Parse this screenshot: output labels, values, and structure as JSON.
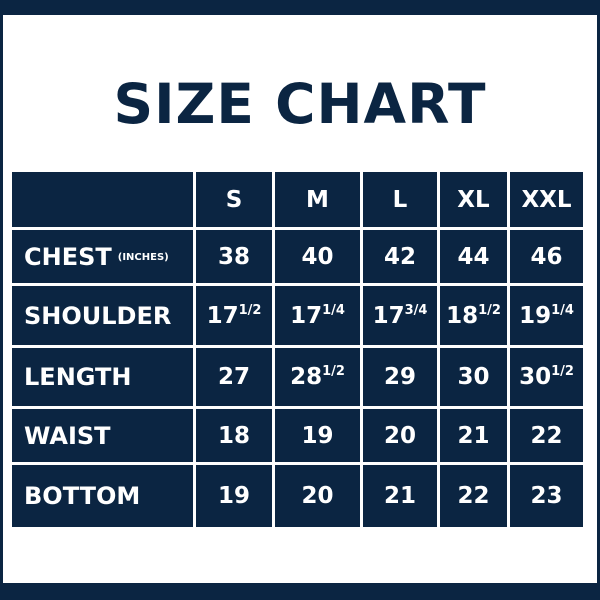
{
  "title": "SIZE CHART",
  "colors": {
    "navy": "#0b2542",
    "background": "#ffffff",
    "text": "#ffffff"
  },
  "table": {
    "columns": [
      "S",
      "M",
      "L",
      "XL",
      "XXL"
    ],
    "rows": [
      {
        "label": "CHEST",
        "note": "(INCHES)",
        "values": [
          {
            "w": "38",
            "f": ""
          },
          {
            "w": "40",
            "f": ""
          },
          {
            "w": "42",
            "f": ""
          },
          {
            "w": "44",
            "f": ""
          },
          {
            "w": "46",
            "f": ""
          }
        ]
      },
      {
        "label": "SHOULDER",
        "note": "",
        "values": [
          {
            "w": "17",
            "f": "1/2"
          },
          {
            "w": "17",
            "f": "1/4"
          },
          {
            "w": "17",
            "f": "3/4"
          },
          {
            "w": "18",
            "f": "1/2"
          },
          {
            "w": "19",
            "f": "1/4"
          }
        ]
      },
      {
        "label": "LENGTH",
        "note": "",
        "values": [
          {
            "w": "27",
            "f": ""
          },
          {
            "w": "28",
            "f": "1/2"
          },
          {
            "w": "29",
            "f": ""
          },
          {
            "w": "30",
            "f": ""
          },
          {
            "w": "30",
            "f": "1/2"
          }
        ]
      },
      {
        "label": "WAIST",
        "note": "",
        "values": [
          {
            "w": "18",
            "f": ""
          },
          {
            "w": "19",
            "f": ""
          },
          {
            "w": "20",
            "f": ""
          },
          {
            "w": "21",
            "f": ""
          },
          {
            "w": "22",
            "f": ""
          }
        ]
      },
      {
        "label": "BOTTOM",
        "note": "",
        "values": [
          {
            "w": "19",
            "f": ""
          },
          {
            "w": "20",
            "f": ""
          },
          {
            "w": "21",
            "f": ""
          },
          {
            "w": "22",
            "f": ""
          },
          {
            "w": "23",
            "f": ""
          }
        ]
      }
    ]
  }
}
